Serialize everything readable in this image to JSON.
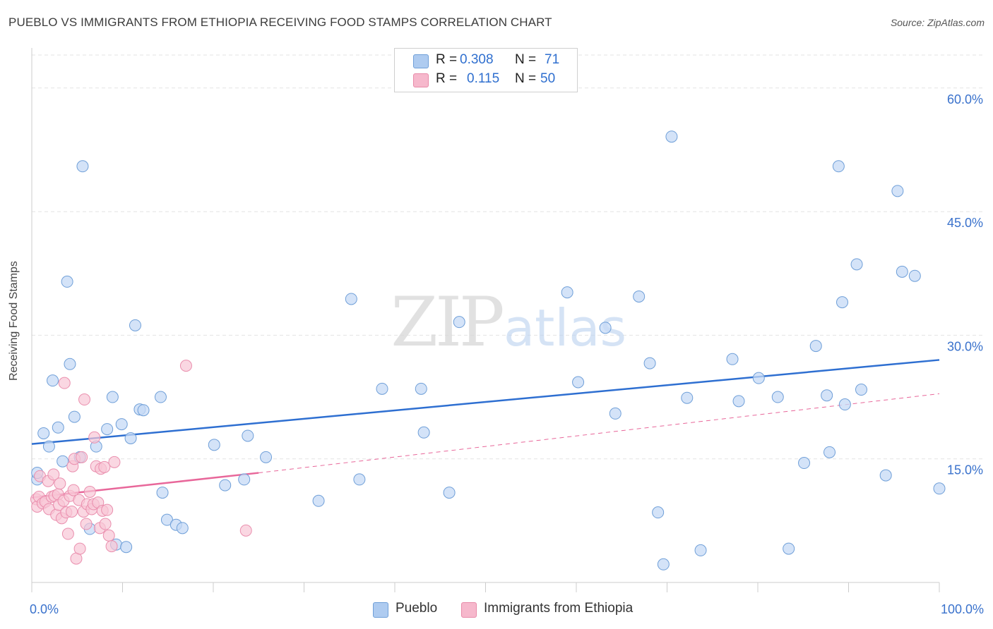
{
  "title": "PUEBLO VS IMMIGRANTS FROM ETHIOPIA RECEIVING FOOD STAMPS CORRELATION CHART",
  "source": "Source: ZipAtlas.com",
  "watermark": {
    "zip": "ZIP",
    "atlas": "atlas"
  },
  "stats": {
    "r_label": "R =",
    "n_label": "N =",
    "rows": [
      {
        "r": "0.308",
        "n": "71",
        "color": "#aecbf0"
      },
      {
        "r": "0.115",
        "n": "50",
        "color": "#f6b8cc"
      }
    ]
  },
  "legend": [
    {
      "label": "Pueblo",
      "color": "#aecbf0",
      "stroke": "#6f9fd8"
    },
    {
      "label": "Immigrants from Ethiopia",
      "color": "#f6b8cc",
      "stroke": "#e88aa8"
    }
  ],
  "colors": {
    "blue_point_fill": "#c5daf5",
    "blue_point_stroke": "#6f9fd8",
    "blue_line": "#2e6fd1",
    "pink_point_fill": "#f8c6d6",
    "pink_point_stroke": "#ea8fae",
    "pink_line": "#e8679a",
    "axis_label": "#3a72cc",
    "grid": "#e3e3e3"
  },
  "chart_data": {
    "type": "scatter",
    "xlabel": "",
    "ylabel": "Receiving Food Stamps",
    "xlim": [
      0,
      100
    ],
    "ylim": [
      0,
      64
    ],
    "x_tick_labels": [
      {
        "value": 0,
        "label": "0.0%"
      },
      {
        "value": 100,
        "label": "100.0%"
      }
    ],
    "y_tick_labels": [
      {
        "value": 15,
        "label": "15.0%"
      },
      {
        "value": 30,
        "label": "30.0%"
      },
      {
        "value": 45,
        "label": "45.0%"
      },
      {
        "value": 60,
        "label": "60.0%"
      }
    ],
    "series": [
      {
        "name": "Pueblo",
        "points": [
          [
            0.6,
            12.5
          ],
          [
            0.6,
            13.3
          ],
          [
            1.3,
            18.1
          ],
          [
            1.9,
            16.5
          ],
          [
            2.3,
            24.5
          ],
          [
            2.9,
            18.8
          ],
          [
            3.4,
            14.7
          ],
          [
            3.9,
            36.5
          ],
          [
            4.2,
            26.5
          ],
          [
            4.7,
            20.1
          ],
          [
            5.3,
            15.2
          ],
          [
            5.6,
            50.5
          ],
          [
            6.4,
            6.5
          ],
          [
            7.1,
            16.5
          ],
          [
            8.3,
            18.6
          ],
          [
            8.9,
            22.5
          ],
          [
            9.3,
            4.6
          ],
          [
            9.9,
            19.2
          ],
          [
            10.4,
            4.3
          ],
          [
            10.9,
            17.5
          ],
          [
            11.4,
            31.2
          ],
          [
            11.9,
            21.0
          ],
          [
            12.3,
            20.9
          ],
          [
            14.2,
            22.5
          ],
          [
            14.4,
            10.9
          ],
          [
            14.9,
            7.6
          ],
          [
            15.9,
            7.0
          ],
          [
            16.6,
            6.6
          ],
          [
            20.1,
            16.7
          ],
          [
            21.3,
            11.8
          ],
          [
            23.4,
            12.5
          ],
          [
            23.8,
            17.8
          ],
          [
            25.8,
            15.2
          ],
          [
            31.6,
            9.9
          ],
          [
            35.2,
            34.4
          ],
          [
            36.1,
            12.5
          ],
          [
            38.6,
            23.5
          ],
          [
            42.9,
            23.5
          ],
          [
            43.2,
            18.2
          ],
          [
            46.0,
            10.9
          ],
          [
            47.1,
            31.6
          ],
          [
            59.0,
            35.2
          ],
          [
            60.2,
            24.3
          ],
          [
            63.2,
            30.9
          ],
          [
            64.3,
            20.5
          ],
          [
            66.9,
            34.7
          ],
          [
            68.1,
            26.6
          ],
          [
            69.0,
            8.5
          ],
          [
            69.6,
            2.2
          ],
          [
            70.5,
            54.1
          ],
          [
            72.2,
            22.4
          ],
          [
            73.7,
            3.9
          ],
          [
            77.2,
            27.1
          ],
          [
            77.9,
            22.0
          ],
          [
            80.1,
            24.8
          ],
          [
            82.2,
            22.5
          ],
          [
            83.4,
            4.1
          ],
          [
            85.1,
            14.5
          ],
          [
            86.4,
            28.7
          ],
          [
            87.6,
            22.7
          ],
          [
            87.9,
            15.8
          ],
          [
            88.9,
            50.5
          ],
          [
            89.3,
            34.0
          ],
          [
            89.6,
            21.6
          ],
          [
            90.9,
            38.6
          ],
          [
            91.4,
            23.4
          ],
          [
            94.1,
            13.0
          ],
          [
            95.4,
            47.5
          ],
          [
            95.9,
            37.7
          ],
          [
            97.3,
            37.2
          ],
          [
            100.0,
            11.4
          ]
        ],
        "trend": {
          "x": [
            0,
            100
          ],
          "y": [
            16.8,
            27.0
          ]
        }
      },
      {
        "name": "Immigrants from Ethiopia",
        "points": [
          [
            0.5,
            10.1
          ],
          [
            0.6,
            9.2
          ],
          [
            0.8,
            10.4
          ],
          [
            0.9,
            12.9
          ],
          [
            1.2,
            9.6
          ],
          [
            1.5,
            9.8
          ],
          [
            1.8,
            12.3
          ],
          [
            1.9,
            8.9
          ],
          [
            2.2,
            10.4
          ],
          [
            2.4,
            13.1
          ],
          [
            2.5,
            10.5
          ],
          [
            2.7,
            8.2
          ],
          [
            2.9,
            10.7
          ],
          [
            3.0,
            9.4
          ],
          [
            3.1,
            12.0
          ],
          [
            3.3,
            7.8
          ],
          [
            3.5,
            9.9
          ],
          [
            3.6,
            24.2
          ],
          [
            3.8,
            8.5
          ],
          [
            4.0,
            5.9
          ],
          [
            4.2,
            10.5
          ],
          [
            4.4,
            8.6
          ],
          [
            4.5,
            14.1
          ],
          [
            4.6,
            11.2
          ],
          [
            4.7,
            15.0
          ],
          [
            4.9,
            2.9
          ],
          [
            5.2,
            10.0
          ],
          [
            5.3,
            4.1
          ],
          [
            5.5,
            15.2
          ],
          [
            5.7,
            8.6
          ],
          [
            5.8,
            22.2
          ],
          [
            6.0,
            7.1
          ],
          [
            6.1,
            9.5
          ],
          [
            6.4,
            11.0
          ],
          [
            6.6,
            8.9
          ],
          [
            6.8,
            9.5
          ],
          [
            6.9,
            17.6
          ],
          [
            7.1,
            14.1
          ],
          [
            7.3,
            9.7
          ],
          [
            7.5,
            6.6
          ],
          [
            7.6,
            13.8
          ],
          [
            7.8,
            8.7
          ],
          [
            8.0,
            14.0
          ],
          [
            8.1,
            7.1
          ],
          [
            8.3,
            8.8
          ],
          [
            8.5,
            5.7
          ],
          [
            8.8,
            4.4
          ],
          [
            9.1,
            14.6
          ],
          [
            17.0,
            26.3
          ],
          [
            23.6,
            6.3
          ]
        ],
        "trend_solid": {
          "x": [
            0,
            25
          ],
          "y": [
            10.3,
            13.3
          ]
        },
        "trend_dashed": {
          "x": [
            25,
            100
          ],
          "y": [
            13.3,
            22.9
          ]
        }
      }
    ]
  }
}
